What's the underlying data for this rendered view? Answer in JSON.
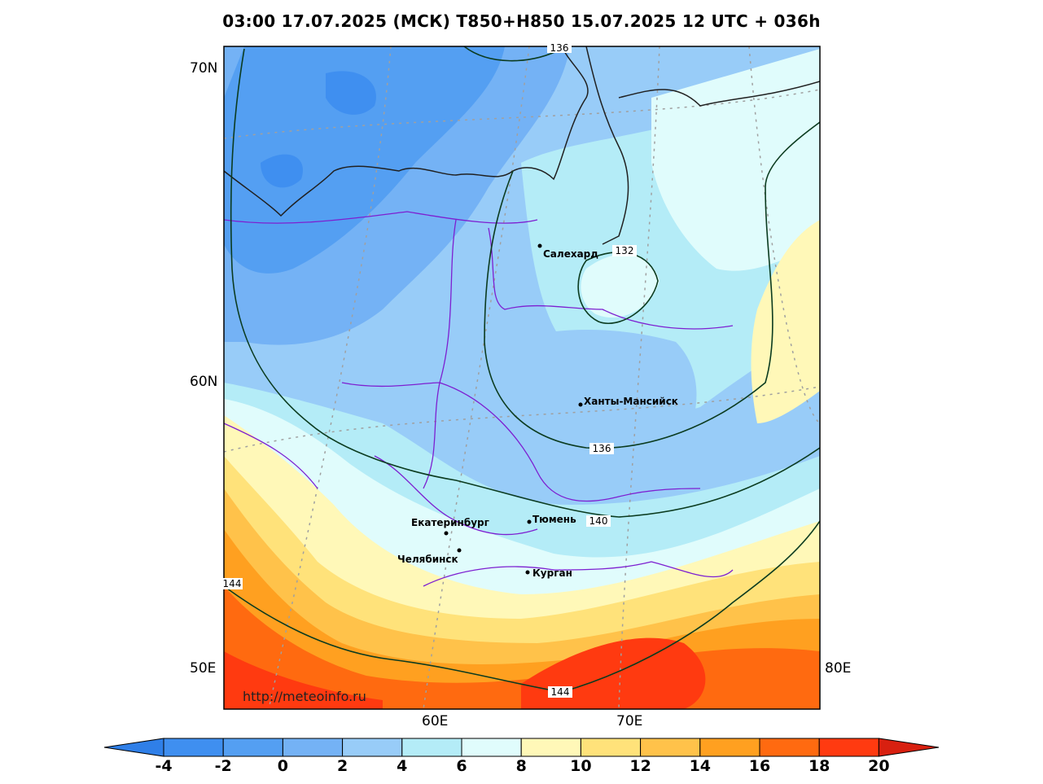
{
  "title": "03:00 17.07.2025 (МСК) T850+H850 15.07.2025 12 UTC + 036h",
  "watermark": "http://meteoinfo.ru",
  "lat_labels": [
    "70N",
    "60N",
    "50E"
  ],
  "lon_labels": [
    "60E",
    "70E",
    "80E"
  ],
  "cities": [
    {
      "name": "Салехард"
    },
    {
      "name": "Ханты-Мансийск"
    },
    {
      "name": "Екатеринбург"
    },
    {
      "name": "Тюмень"
    },
    {
      "name": "Челябинск"
    },
    {
      "name": "Курган"
    }
  ],
  "isohypse_labels": [
    "136",
    "132",
    "136",
    "140",
    "144",
    "144"
  ],
  "colorbar": {
    "ticks": [
      "-4",
      "-2",
      "0",
      "2",
      "4",
      "6",
      "8",
      "10",
      "12",
      "14",
      "16",
      "18",
      "20"
    ],
    "colors": [
      "#2f7fe8",
      "#3f8ff0",
      "#549ff2",
      "#74b2f5",
      "#98ccf8",
      "#b4ecf7",
      "#e0fcfc",
      "#fff8b8",
      "#ffe27a",
      "#ffc24a",
      "#ffa020",
      "#ff6a10",
      "#ff3a10",
      "#d82010"
    ]
  }
}
